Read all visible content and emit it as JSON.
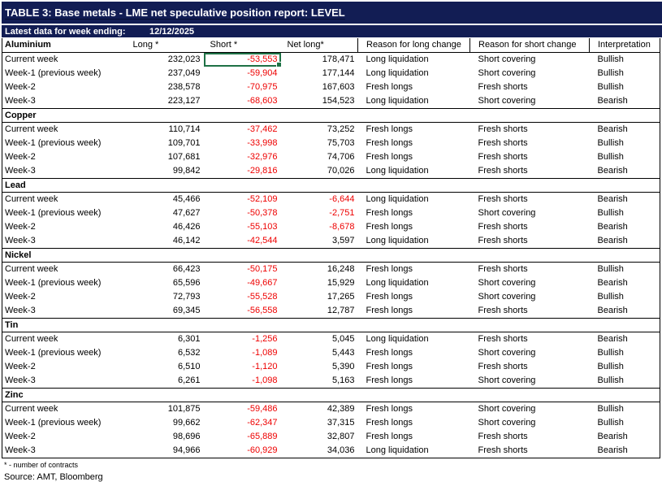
{
  "header": {
    "title": "TABLE 3: Base metals - LME net speculative position report: LEVEL",
    "subtitle_label": "Latest data for week ending:",
    "subtitle_date": "12/12/2025"
  },
  "columns": [
    "Long *",
    "Short *",
    "Net long*",
    "Reason for long change",
    "Reason for short change",
    "Interpretation"
  ],
  "sections": [
    {
      "metal": "Aluminium",
      "rows": [
        {
          "label": "Current week",
          "long": "232,023",
          "short": "-53,553",
          "net": "178,471",
          "reason_long": "Long liquidation",
          "reason_short": "Short covering",
          "interpretation": "Bullish",
          "selected": "short"
        },
        {
          "label": "Week-1 (previous week)",
          "long": "237,049",
          "short": "-59,904",
          "net": "177,144",
          "reason_long": "Long liquidation",
          "reason_short": "Short covering",
          "interpretation": "Bullish"
        },
        {
          "label": "Week-2",
          "long": "238,578",
          "short": "-70,975",
          "net": "167,603",
          "reason_long": "Fresh longs",
          "reason_short": "Fresh shorts",
          "interpretation": "Bullish"
        },
        {
          "label": "Week-3",
          "long": "223,127",
          "short": "-68,603",
          "net": "154,523",
          "reason_long": "Long liquidation",
          "reason_short": "Short covering",
          "interpretation": "Bearish"
        }
      ]
    },
    {
      "metal": "Copper",
      "rows": [
        {
          "label": "Current week",
          "long": "110,714",
          "short": "-37,462",
          "net": "73,252",
          "reason_long": "Fresh longs",
          "reason_short": "Fresh shorts",
          "interpretation": "Bearish"
        },
        {
          "label": "Week-1 (previous week)",
          "long": "109,701",
          "short": "-33,998",
          "net": "75,703",
          "reason_long": "Fresh longs",
          "reason_short": "Fresh shorts",
          "interpretation": "Bullish"
        },
        {
          "label": "Week-2",
          "long": "107,681",
          "short": "-32,976",
          "net": "74,706",
          "reason_long": "Fresh longs",
          "reason_short": "Fresh shorts",
          "interpretation": "Bullish"
        },
        {
          "label": "Week-3",
          "long": "99,842",
          "short": "-29,816",
          "net": "70,026",
          "reason_long": "Long liquidation",
          "reason_short": "Fresh shorts",
          "interpretation": "Bearish"
        }
      ]
    },
    {
      "metal": "Lead",
      "rows": [
        {
          "label": "Current week",
          "long": "45,466",
          "short": "-52,109",
          "net": "-6,644",
          "reason_long": "Long liquidation",
          "reason_short": "Fresh shorts",
          "interpretation": "Bearish"
        },
        {
          "label": "Week-1 (previous week)",
          "long": "47,627",
          "short": "-50,378",
          "net": "-2,751",
          "reason_long": "Fresh longs",
          "reason_short": "Short covering",
          "interpretation": "Bullish"
        },
        {
          "label": "Week-2",
          "long": "46,426",
          "short": "-55,103",
          "net": "-8,678",
          "reason_long": "Fresh longs",
          "reason_short": "Fresh shorts",
          "interpretation": "Bearish"
        },
        {
          "label": "Week-3",
          "long": "46,142",
          "short": "-42,544",
          "net": "3,597",
          "reason_long": "Long liquidation",
          "reason_short": "Fresh shorts",
          "interpretation": "Bearish"
        }
      ]
    },
    {
      "metal": "Nickel",
      "rows": [
        {
          "label": "Current week",
          "long": "66,423",
          "short": "-50,175",
          "net": "16,248",
          "reason_long": "Fresh longs",
          "reason_short": "Fresh shorts",
          "interpretation": "Bullish"
        },
        {
          "label": "Week-1 (previous week)",
          "long": "65,596",
          "short": "-49,667",
          "net": "15,929",
          "reason_long": "Long liquidation",
          "reason_short": "Short covering",
          "interpretation": "Bearish"
        },
        {
          "label": "Week-2",
          "long": "72,793",
          "short": "-55,528",
          "net": "17,265",
          "reason_long": "Fresh longs",
          "reason_short": "Short covering",
          "interpretation": "Bullish"
        },
        {
          "label": "Week-3",
          "long": "69,345",
          "short": "-56,558",
          "net": "12,787",
          "reason_long": "Fresh longs",
          "reason_short": "Fresh shorts",
          "interpretation": "Bearish"
        }
      ]
    },
    {
      "metal": "Tin",
      "rows": [
        {
          "label": "Current week",
          "long": "6,301",
          "short": "-1,256",
          "net": "5,045",
          "reason_long": "Long liquidation",
          "reason_short": "Fresh shorts",
          "interpretation": "Bearish"
        },
        {
          "label": "Week-1 (previous week)",
          "long": "6,532",
          "short": "-1,089",
          "net": "5,443",
          "reason_long": "Fresh longs",
          "reason_short": "Short covering",
          "interpretation": "Bullish"
        },
        {
          "label": "Week-2",
          "long": "6,510",
          "short": "-1,120",
          "net": "5,390",
          "reason_long": "Fresh longs",
          "reason_short": "Fresh shorts",
          "interpretation": "Bullish"
        },
        {
          "label": "Week-3",
          "long": "6,261",
          "short": "-1,098",
          "net": "5,163",
          "reason_long": "Fresh longs",
          "reason_short": "Short covering",
          "interpretation": "Bullish"
        }
      ]
    },
    {
      "metal": "Zinc",
      "rows": [
        {
          "label": "Current week",
          "long": "101,875",
          "short": "-59,486",
          "net": "42,389",
          "reason_long": "Fresh longs",
          "reason_short": "Short covering",
          "interpretation": "Bullish"
        },
        {
          "label": "Week-1 (previous week)",
          "long": "99,662",
          "short": "-62,347",
          "net": "37,315",
          "reason_long": "Fresh longs",
          "reason_short": "Short covering",
          "interpretation": "Bullish"
        },
        {
          "label": "Week-2",
          "long": "98,696",
          "short": "-65,889",
          "net": "32,807",
          "reason_long": "Fresh longs",
          "reason_short": "Fresh shorts",
          "interpretation": "Bearish"
        },
        {
          "label": "Week-3",
          "long": "94,966",
          "short": "-60,929",
          "net": "34,036",
          "reason_long": "Long liquidation",
          "reason_short": "Fresh shorts",
          "interpretation": "Bearish"
        }
      ]
    }
  ],
  "footnote": "* - number of contracts",
  "source": "Source: AMT, Bloomberg",
  "colors": {
    "navy_header": "#121d54",
    "negative_red": "#ee0000",
    "selection_green": "#1e7145",
    "border_black": "#000000",
    "background": "#ffffff"
  }
}
